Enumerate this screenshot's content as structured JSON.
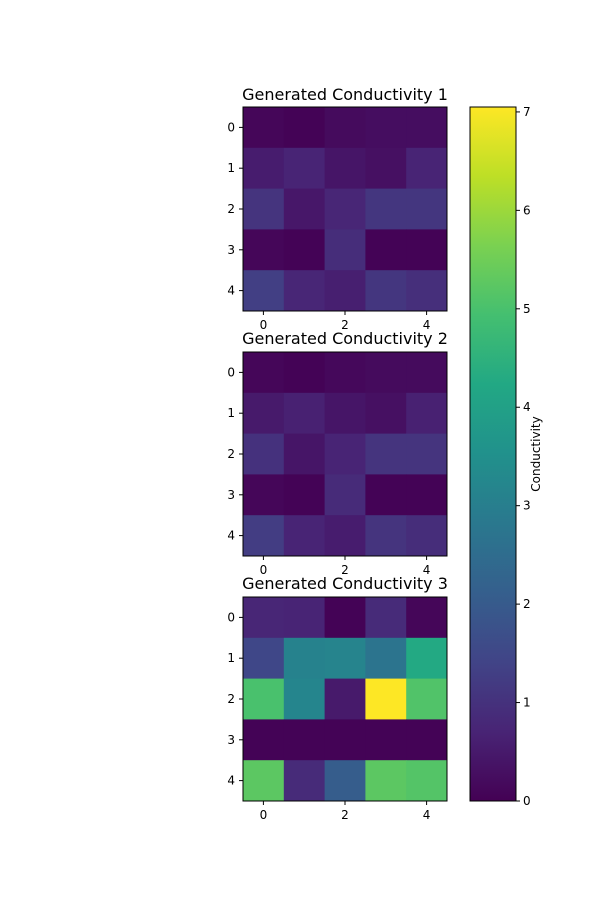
{
  "chart_data": [
    {
      "type": "heatmap",
      "title": "Generated Conductivity 1",
      "x_ticks": [
        "0",
        "2",
        "4"
      ],
      "y_ticks": [
        "0",
        "1",
        "2",
        "3",
        "4"
      ],
      "values": [
        [
          0.1,
          0.05,
          0.2,
          0.25,
          0.25
        ],
        [
          0.55,
          0.7,
          0.4,
          0.3,
          0.7
        ],
        [
          1.05,
          0.45,
          0.75,
          1.1,
          1.1
        ],
        [
          0.1,
          0.05,
          0.9,
          0.05,
          0.05
        ],
        [
          1.3,
          0.75,
          0.6,
          1.1,
          0.95
        ]
      ]
    },
    {
      "type": "heatmap",
      "title": "Generated Conductivity 2",
      "x_ticks": [
        "0",
        "2",
        "4"
      ],
      "y_ticks": [
        "0",
        "1",
        "2",
        "3",
        "4"
      ],
      "values": [
        [
          0.1,
          0.05,
          0.15,
          0.2,
          0.2
        ],
        [
          0.5,
          0.65,
          0.4,
          0.3,
          0.65
        ],
        [
          1.0,
          0.4,
          0.7,
          1.05,
          1.05
        ],
        [
          0.1,
          0.05,
          0.85,
          0.05,
          0.05
        ],
        [
          1.25,
          0.7,
          0.55,
          1.05,
          0.9
        ]
      ]
    },
    {
      "type": "heatmap",
      "title": "Generated Conductivity 3",
      "x_ticks": [
        "0",
        "2",
        "4"
      ],
      "y_ticks": [
        "0",
        "1",
        "2",
        "3",
        "4"
      ],
      "values": [
        [
          0.75,
          0.7,
          0.05,
          0.85,
          0.1
        ],
        [
          1.5,
          3.1,
          3.15,
          2.7,
          4.25
        ],
        [
          5.0,
          3.2,
          0.5,
          7.05,
          5.1
        ],
        [
          0.05,
          0.05,
          0.05,
          0.05,
          0.05
        ],
        [
          5.25,
          0.85,
          2.05,
          5.25,
          5.15
        ]
      ]
    }
  ],
  "colorbar": {
    "label": "Conductivity",
    "colormap": "viridis",
    "range": [
      0,
      7.05
    ],
    "ticks": [
      0,
      1,
      2,
      3,
      4,
      5,
      6,
      7
    ]
  }
}
